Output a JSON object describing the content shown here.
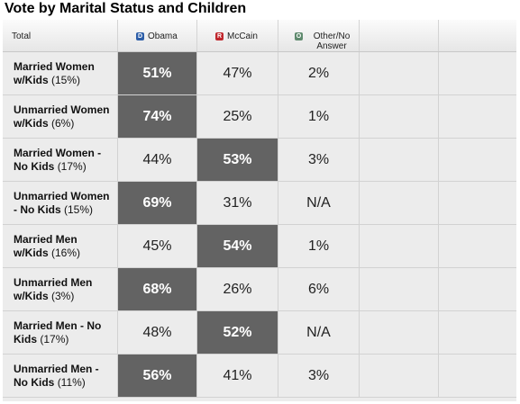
{
  "title": "Vote by Marital Status and Children",
  "colors": {
    "obama_badge": "#2d5ea8",
    "mccain_badge": "#c0272d",
    "other_badge": "#5f8a6e",
    "winner_cell": "#636363",
    "table_bg": "#ececec"
  },
  "header": {
    "total": "Total",
    "candidates": [
      {
        "badge": "D",
        "label": "Obama",
        "color": "#2d5ea8"
      },
      {
        "badge": "R",
        "label": "McCain",
        "color": "#c0272d"
      },
      {
        "badge": "O",
        "label": "Other/No Answer",
        "color": "#5f8a6e"
      }
    ]
  },
  "rows": [
    {
      "group": "Married Women w/Kids",
      "share": "(15%)",
      "obama": "51%",
      "mccain": "47%",
      "other": "2%",
      "winner": "obama"
    },
    {
      "group": "Unmarried Women w/Kids",
      "share": "(6%)",
      "obama": "74%",
      "mccain": "25%",
      "other": "1%",
      "winner": "obama"
    },
    {
      "group": "Married Women - No Kids",
      "share": "(17%)",
      "obama": "44%",
      "mccain": "53%",
      "other": "3%",
      "winner": "mccain"
    },
    {
      "group": "Unmarried Women - No Kids",
      "share": "(15%)",
      "obama": "69%",
      "mccain": "31%",
      "other": "N/A",
      "winner": "obama"
    },
    {
      "group": "Married Men w/Kids",
      "share": "(16%)",
      "obama": "45%",
      "mccain": "54%",
      "other": "1%",
      "winner": "mccain"
    },
    {
      "group": "Unmarried Men w/Kids",
      "share": "(3%)",
      "obama": "68%",
      "mccain": "26%",
      "other": "6%",
      "winner": "obama"
    },
    {
      "group": "Married Men - No Kids",
      "share": "(17%)",
      "obama": "48%",
      "mccain": "52%",
      "other": "N/A",
      "winner": "mccain"
    },
    {
      "group": "Unmarried Men - No Kids",
      "share": "(11%)",
      "obama": "56%",
      "mccain": "41%",
      "other": "3%",
      "winner": "obama"
    }
  ]
}
